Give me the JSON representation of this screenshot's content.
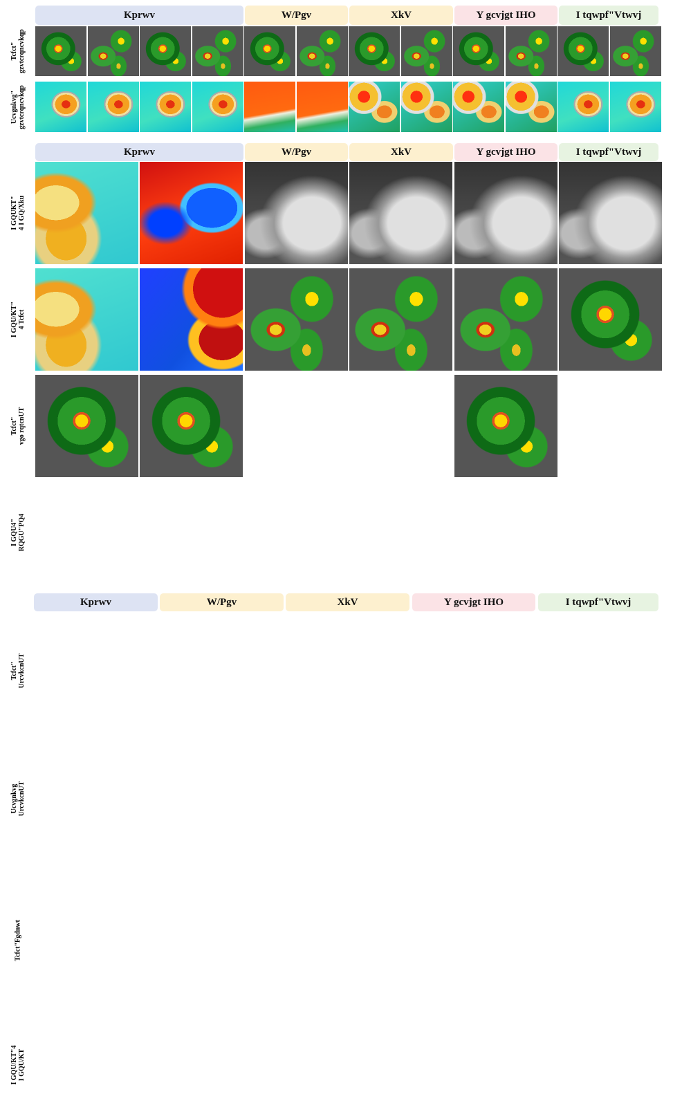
{
  "sections": [
    {
      "headers": [
        "Kprwv",
        "W/Pgv",
        "XkV",
        "Y gcvjgt IHO",
        "I tqwpf\"Vtwvj"
      ],
      "row_labels": [
        [
          "Tcfct\"",
          "gzvtcrqncvkqp"
        ],
        [
          "Ucvgnkvg\"",
          "gzvtcrqncvkqp"
        ]
      ]
    },
    {
      "headers": [
        "Kprwv",
        "W/Pgv",
        "XkV",
        "Y gcvjgt IHO",
        "I tqwpf\"Vtwvj"
      ],
      "row_labels": [
        [
          "I GQUKT\"",
          "4 I GQ/Xku"
        ],
        [
          "I GQU/KT\"",
          "4 Tcfct"
        ],
        [
          "Tcfct\"",
          "vgo rqtcnUT"
        ],
        [
          "I GQU4\"",
          "RQGU\"PQ4"
        ]
      ]
    },
    {
      "headers": [
        "Kprwv",
        "W/Pgv",
        "XkV",
        "Y gcvjgt IHO",
        "I tqwpf\"Vtwvj"
      ],
      "row_labels": [
        [
          "Tcfct\"",
          "UrcvkcnUT"
        ],
        [
          "Ucvgnkvg",
          "UrcvkcnUT"
        ],
        [
          "Tcfct\"Fgdnwt"
        ],
        [
          "I GQU/KT\"4",
          "I GQU/KT"
        ]
      ]
    }
  ]
}
